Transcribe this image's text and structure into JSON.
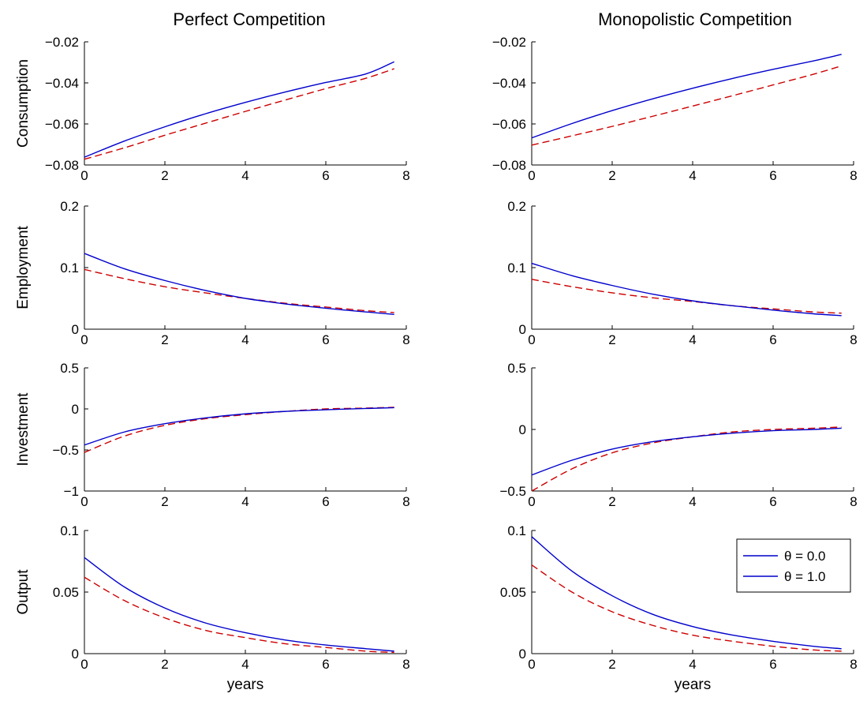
{
  "columns": [
    "Perfect Competition",
    "Monopolistic Competition"
  ],
  "xlabel": "years",
  "chart_data": [
    {
      "type": "line",
      "column": "Perfect Competition",
      "ylabel": "Consumption",
      "xlim": [
        0,
        8
      ],
      "ylim": [
        -0.08,
        -0.02
      ],
      "xticks": [
        "0",
        "2",
        "4",
        "6",
        "8"
      ],
      "yticks": [
        "−0.08",
        "−0.06",
        "−0.04",
        "−0.02"
      ],
      "series": [
        {
          "x": [
            0,
            1,
            2,
            3,
            4,
            5,
            6,
            7,
            7.7
          ],
          "values": [
            -0.0762,
            -0.0683,
            -0.0614,
            -0.0551,
            -0.0495,
            -0.0444,
            -0.0398,
            -0.0356,
            -0.0297
          ],
          "color": "#0000cc",
          "style": "solid"
        },
        {
          "x": [
            0,
            1,
            2,
            3,
            4,
            5,
            6,
            7,
            7.7
          ],
          "values": [
            -0.0772,
            -0.0716,
            -0.0655,
            -0.0597,
            -0.0539,
            -0.0483,
            -0.0428,
            -0.0377,
            -0.0331
          ],
          "color": "#cc0000",
          "style": "dashed"
        }
      ]
    },
    {
      "type": "line",
      "column": "Monopolistic Competition",
      "ylabel": "",
      "xlim": [
        0,
        8
      ],
      "ylim": [
        -0.08,
        -0.02
      ],
      "xticks": [
        "0",
        "2",
        "4",
        "6",
        "8"
      ],
      "yticks": [
        "−0.08",
        "−0.06",
        "−0.04",
        "−0.02"
      ],
      "series": [
        {
          "x": [
            0,
            1,
            2,
            3,
            4,
            5,
            6,
            7,
            7.7
          ],
          "values": [
            -0.0668,
            -0.0598,
            -0.0535,
            -0.0478,
            -0.0426,
            -0.0378,
            -0.0334,
            -0.0293,
            -0.0261
          ],
          "color": "#0000cc",
          "style": "solid"
        },
        {
          "x": [
            0,
            1,
            2,
            3,
            4,
            5,
            6,
            7,
            7.7
          ],
          "values": [
            -0.0703,
            -0.0658,
            -0.0612,
            -0.0563,
            -0.0513,
            -0.0462,
            -0.041,
            -0.0358,
            -0.0317
          ],
          "color": "#cc0000",
          "style": "dashed"
        }
      ]
    },
    {
      "type": "line",
      "column": "Perfect Competition",
      "ylabel": "Employment",
      "xlim": [
        0,
        8
      ],
      "ylim": [
        0,
        0.2
      ],
      "xticks": [
        "0",
        "2",
        "4",
        "6",
        "8"
      ],
      "yticks": [
        "0",
        "0.1",
        "0.2"
      ],
      "series": [
        {
          "x": [
            0,
            1,
            2,
            3,
            4,
            5,
            6,
            7,
            7.7
          ],
          "values": [
            0.123,
            0.098,
            0.079,
            0.063,
            0.05,
            0.041,
            0.034,
            0.028,
            0.024
          ],
          "color": "#0000cc",
          "style": "solid"
        },
        {
          "x": [
            0,
            1,
            2,
            3,
            4,
            5,
            6,
            7,
            7.7
          ],
          "values": [
            0.097,
            0.082,
            0.069,
            0.059,
            0.05,
            0.042,
            0.036,
            0.03,
            0.027
          ],
          "color": "#cc0000",
          "style": "dashed"
        }
      ]
    },
    {
      "type": "line",
      "column": "Monopolistic Competition",
      "ylabel": "",
      "xlim": [
        0,
        8
      ],
      "ylim": [
        0,
        0.2
      ],
      "xticks": [
        "0",
        "2",
        "4",
        "6",
        "8"
      ],
      "yticks": [
        "0",
        "0.1",
        "0.2"
      ],
      "series": [
        {
          "x": [
            0,
            1,
            2,
            3,
            4,
            5,
            6,
            7,
            7.7
          ],
          "values": [
            0.107,
            0.087,
            0.071,
            0.057,
            0.046,
            0.038,
            0.031,
            0.025,
            0.022
          ],
          "color": "#0000cc",
          "style": "solid"
        },
        {
          "x": [
            0,
            1,
            2,
            3,
            4,
            5,
            6,
            7,
            7.7
          ],
          "values": [
            0.081,
            0.069,
            0.059,
            0.051,
            0.045,
            0.038,
            0.033,
            0.028,
            0.026
          ],
          "color": "#cc0000",
          "style": "dashed"
        }
      ]
    },
    {
      "type": "line",
      "column": "Perfect Competition",
      "ylabel": "Investment",
      "xlim": [
        0,
        8
      ],
      "ylim": [
        -1,
        0.5
      ],
      "xticks": [
        "0",
        "2",
        "4",
        "6",
        "8"
      ],
      "yticks": [
        "−1",
        "−0.5",
        "0",
        "0.5"
      ],
      "series": [
        {
          "x": [
            0,
            1,
            2,
            3,
            4,
            5,
            6,
            7,
            7.7
          ],
          "values": [
            -0.44,
            -0.28,
            -0.18,
            -0.11,
            -0.06,
            -0.03,
            -0.01,
            0.005,
            0.015
          ],
          "color": "#0000cc",
          "style": "solid"
        },
        {
          "x": [
            0,
            1,
            2,
            3,
            4,
            5,
            6,
            7,
            7.7
          ],
          "values": [
            -0.53,
            -0.33,
            -0.2,
            -0.12,
            -0.07,
            -0.03,
            0.0,
            0.01,
            0.02
          ],
          "color": "#cc0000",
          "style": "dashed"
        }
      ]
    },
    {
      "type": "line",
      "column": "Monopolistic Competition",
      "ylabel": "",
      "xlim": [
        0,
        8
      ],
      "ylim": [
        -0.5,
        0.5
      ],
      "xticks": [
        "0",
        "2",
        "4",
        "6",
        "8"
      ],
      "yticks": [
        "−0.5",
        "0",
        "0.5"
      ],
      "series": [
        {
          "x": [
            0,
            1,
            2,
            3,
            4,
            5,
            6,
            7,
            7.7
          ],
          "values": [
            -0.37,
            -0.25,
            -0.16,
            -0.1,
            -0.06,
            -0.03,
            -0.01,
            0.0,
            0.01
          ],
          "color": "#0000cc",
          "style": "solid"
        },
        {
          "x": [
            0,
            1,
            2,
            3,
            4,
            5,
            6,
            7,
            7.7
          ],
          "values": [
            -0.5,
            -0.32,
            -0.19,
            -0.11,
            -0.06,
            -0.02,
            0.0,
            0.01,
            0.02
          ],
          "color": "#cc0000",
          "style": "dashed"
        }
      ]
    },
    {
      "type": "line",
      "column": "Perfect Competition",
      "ylabel": "Output",
      "xlim": [
        0,
        8
      ],
      "ylim": [
        0,
        0.1
      ],
      "xticks": [
        "0",
        "2",
        "4",
        "6",
        "8"
      ],
      "yticks": [
        "0",
        "0.05",
        "0.1"
      ],
      "series": [
        {
          "x": [
            0,
            1,
            2,
            3,
            4,
            5,
            6,
            7,
            7.7
          ],
          "values": [
            0.078,
            0.054,
            0.037,
            0.025,
            0.017,
            0.011,
            0.007,
            0.004,
            0.002
          ],
          "color": "#0000cc",
          "style": "solid"
        },
        {
          "x": [
            0,
            1,
            2,
            3,
            4,
            5,
            6,
            7,
            7.7
          ],
          "values": [
            0.062,
            0.043,
            0.029,
            0.019,
            0.013,
            0.008,
            0.005,
            0.002,
            0.001
          ],
          "color": "#cc0000",
          "style": "dashed"
        }
      ]
    },
    {
      "type": "line",
      "column": "Monopolistic Competition",
      "ylabel": "",
      "xlim": [
        0,
        8
      ],
      "ylim": [
        0,
        0.1
      ],
      "xticks": [
        "0",
        "2",
        "4",
        "6",
        "8"
      ],
      "yticks": [
        "0",
        "0.05",
        "0.1"
      ],
      "legend": {
        "placement": "top-right",
        "entries": [
          "θ = 0.0",
          "θ = 1.0"
        ]
      },
      "series": [
        {
          "x": [
            0,
            1,
            2,
            3,
            4,
            5,
            6,
            7,
            7.7
          ],
          "values": [
            0.095,
            0.067,
            0.047,
            0.032,
            0.022,
            0.015,
            0.01,
            0.006,
            0.004
          ],
          "color": "#0000cc",
          "style": "solid"
        },
        {
          "x": [
            0,
            1,
            2,
            3,
            4,
            5,
            6,
            7,
            7.7
          ],
          "values": [
            0.072,
            0.05,
            0.034,
            0.023,
            0.015,
            0.01,
            0.006,
            0.003,
            0.002
          ],
          "color": "#cc0000",
          "style": "dashed"
        }
      ]
    }
  ]
}
